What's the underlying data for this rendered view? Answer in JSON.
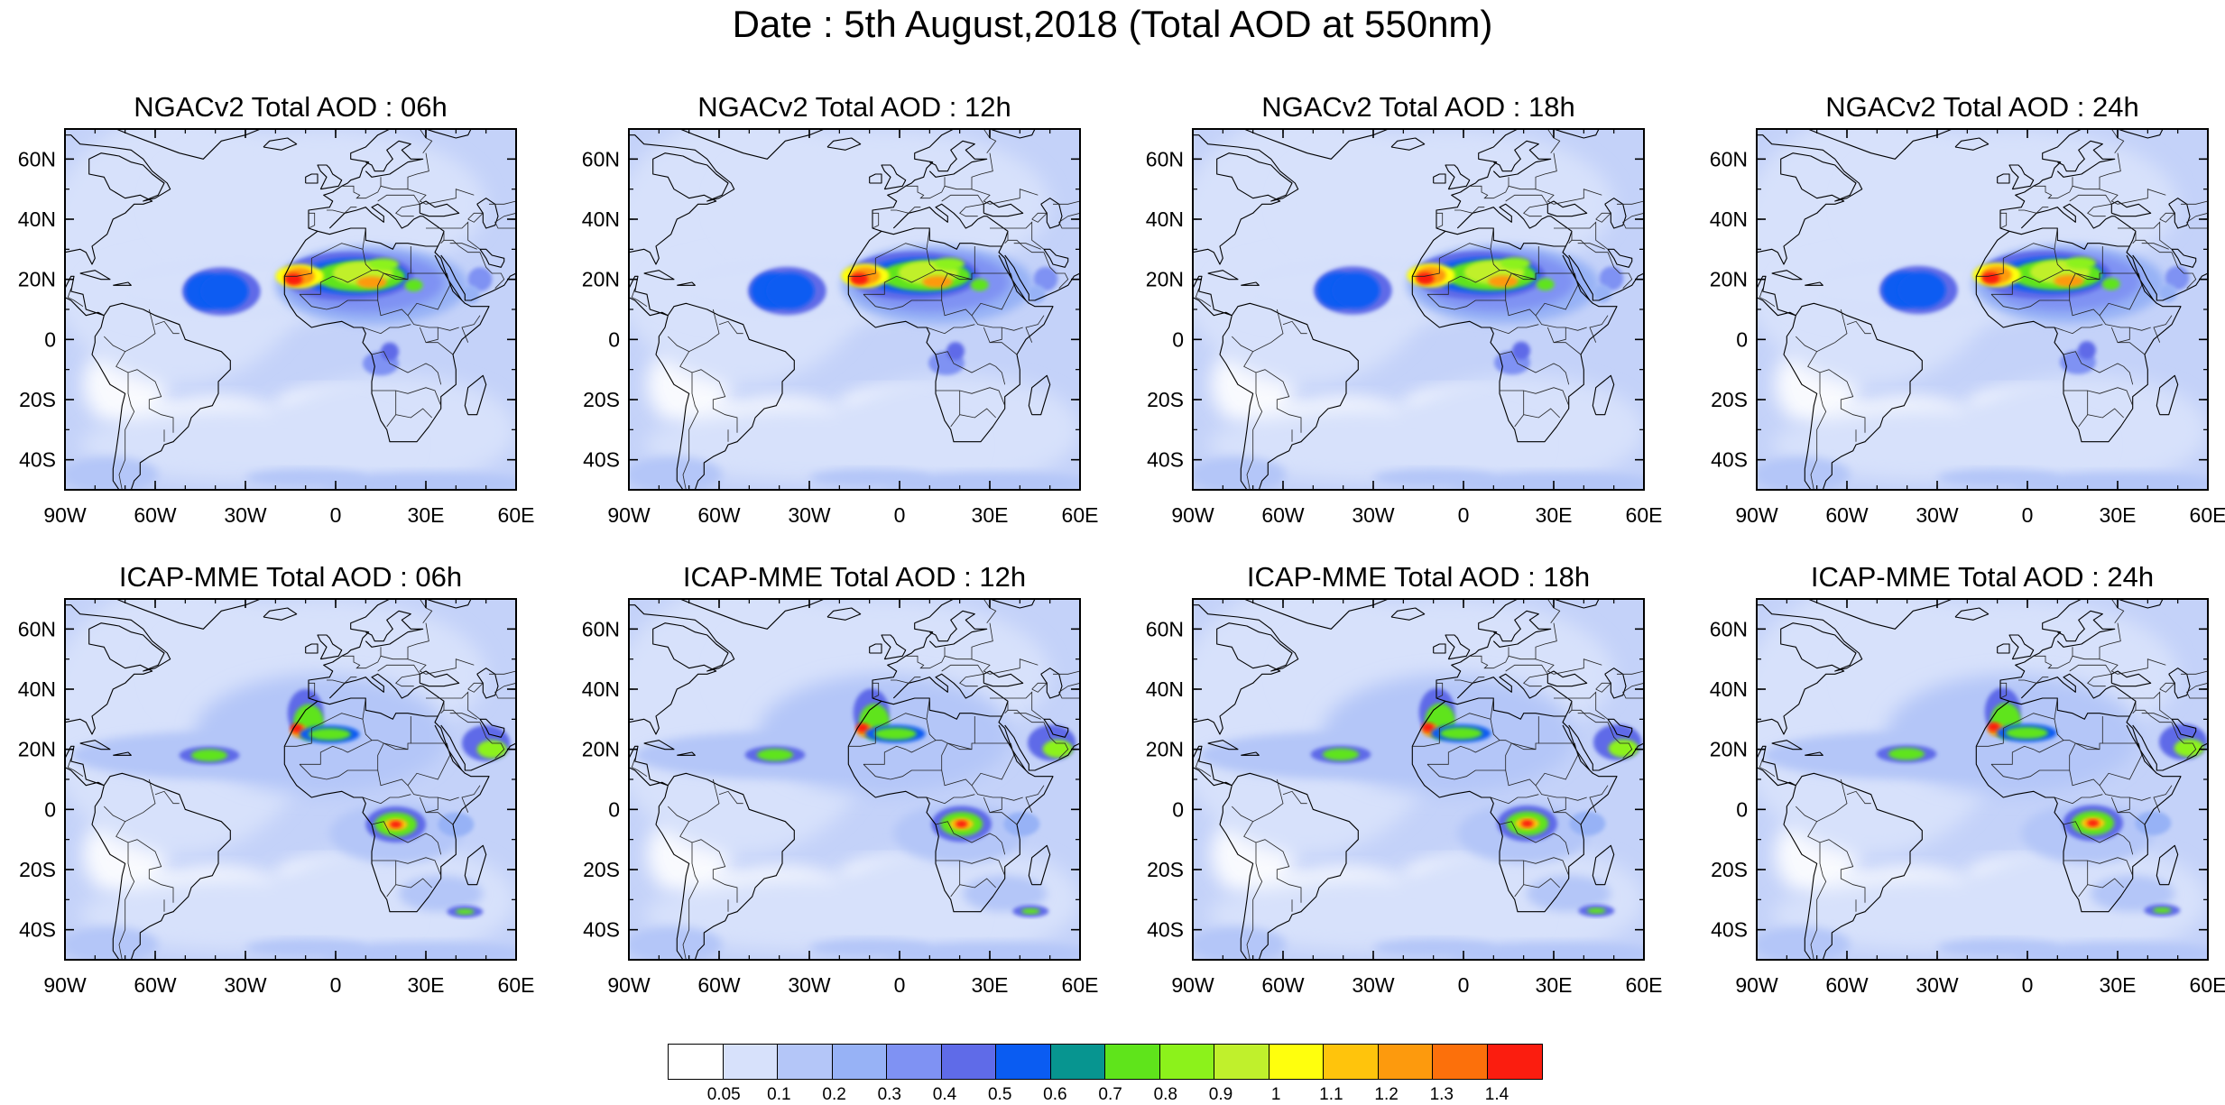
{
  "title": "Date : 5th August,2018 (Total AOD at 550nm)",
  "panels": [
    {
      "title": "NGACv2 Total AOD : 06h",
      "model": "NGACv2",
      "hour": "06h"
    },
    {
      "title": "NGACv2 Total AOD : 12h",
      "model": "NGACv2",
      "hour": "12h"
    },
    {
      "title": "NGACv2 Total AOD : 18h",
      "model": "NGACv2",
      "hour": "18h"
    },
    {
      "title": "NGACv2 Total AOD : 24h",
      "model": "NGACv2",
      "hour": "24h"
    },
    {
      "title": "ICAP-MME Total AOD : 06h",
      "model": "ICAP-MME",
      "hour": "06h"
    },
    {
      "title": "ICAP-MME Total AOD : 12h",
      "model": "ICAP-MME",
      "hour": "12h"
    },
    {
      "title": "ICAP-MME Total AOD : 18h",
      "model": "ICAP-MME",
      "hour": "18h"
    },
    {
      "title": "ICAP-MME Total AOD : 24h",
      "model": "ICAP-MME",
      "hour": "24h"
    }
  ],
  "map": {
    "lon_range": [
      -90,
      60
    ],
    "lat_range": [
      -50,
      70
    ],
    "lon_ticks": [
      {
        "value": -90,
        "label": "90W"
      },
      {
        "value": -60,
        "label": "60W"
      },
      {
        "value": -30,
        "label": "30W"
      },
      {
        "value": 0,
        "label": "0"
      },
      {
        "value": 30,
        "label": "30E"
      },
      {
        "value": 60,
        "label": "60E"
      }
    ],
    "lat_ticks": [
      {
        "value": 60,
        "label": "60N"
      },
      {
        "value": 40,
        "label": "40N"
      },
      {
        "value": 20,
        "label": "20N"
      },
      {
        "value": 0,
        "label": "0"
      },
      {
        "value": -20,
        "label": "20S"
      },
      {
        "value": -40,
        "label": "40S"
      }
    ]
  },
  "colorbar": {
    "labels": [
      "0.05",
      "0.1",
      "0.2",
      "0.3",
      "0.4",
      "0.5",
      "0.6",
      "0.7",
      "0.8",
      "0.9",
      "1",
      "1.1",
      "1.2",
      "1.3",
      "1.4"
    ],
    "colors": [
      "#ffffff",
      "#d7e1fb",
      "#b4c6f8",
      "#97b2f6",
      "#7f92f3",
      "#5f6be8",
      "#0a5cf2",
      "#079590",
      "#5fe41b",
      "#8cf21b",
      "#c0f02c",
      "#ffff0d",
      "#ffc40c",
      "#fd9a0d",
      "#fc700b",
      "#fb1d0f"
    ]
  }
}
